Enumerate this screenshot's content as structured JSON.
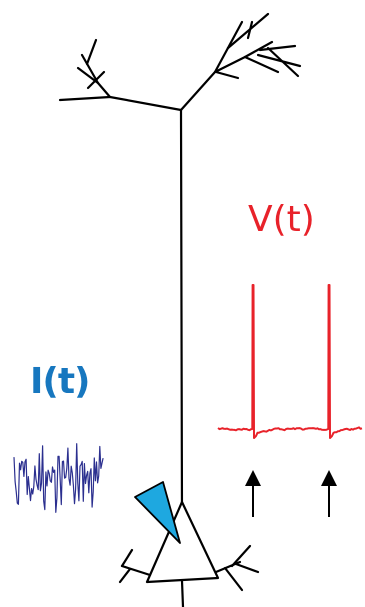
{
  "labels": {
    "voltage": "V(t)",
    "current": "I(t)"
  },
  "colors": {
    "neuron": "#000000",
    "voltage": "#e8222a",
    "current_label": "#1777bf",
    "current_trace": "#2b2f8f",
    "electrode": "#1ea8e0",
    "arrows": "#000000"
  },
  "icons": {
    "neuron": "pyramidal-neuron-icon",
    "electrode": "electrode-icon",
    "spike_markers": "up-arrow-icon"
  }
}
